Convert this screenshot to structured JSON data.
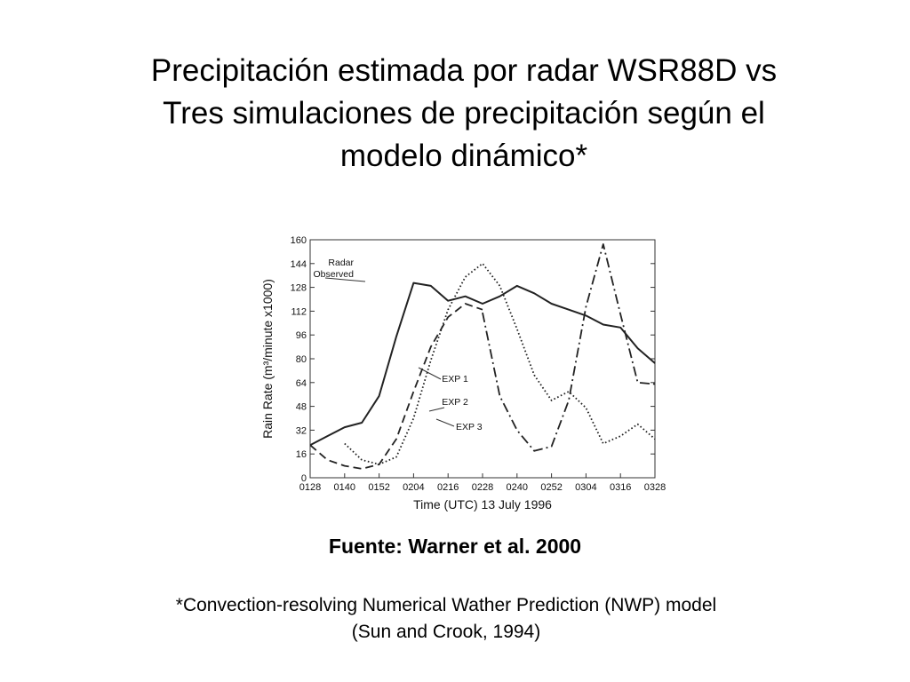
{
  "slide": {
    "title_lines": [
      "Precipitación estimada por radar WSR88D vs",
      "Tres simulaciones de precipitación según el",
      "modelo dinámico*"
    ],
    "source": "Fuente: Warner et al. 2000",
    "footnote_lines": [
      "*Convection-resolving Numerical Wather Prediction (NWP) model",
      "(Sun and Crook, 1994)"
    ]
  },
  "chart_data": {
    "type": "line",
    "xlabel": "Time (UTC) 13 July 1996",
    "ylabel": "Rain Rate (m³/minute x1000)",
    "ylim": [
      0,
      160
    ],
    "yticks": [
      0,
      16,
      32,
      48,
      64,
      80,
      96,
      112,
      128,
      144,
      160
    ],
    "x_tick_labels": [
      "0128",
      "0140",
      "0152",
      "0204",
      "0216",
      "0228",
      "0240",
      "0252",
      "0304",
      "0316",
      "0328"
    ],
    "xlim": [
      "0128",
      "0328"
    ],
    "grid": false,
    "colors": {
      "line": "#222222",
      "frame": "#333333",
      "text": "#111111"
    },
    "series": [
      {
        "name": "Radar Observed",
        "style": "solid",
        "times": [
          "0128",
          "0134",
          "0140",
          "0146",
          "0152",
          "0158",
          "0204",
          "0210",
          "0216",
          "0222",
          "0228",
          "0234",
          "0240",
          "0246",
          "0252",
          "0258",
          "0304",
          "0310",
          "0316",
          "0322",
          "0328"
        ],
        "values": [
          22,
          28,
          34,
          37,
          55,
          95,
          131,
          129,
          119,
          122,
          117,
          122,
          129,
          124,
          117,
          113,
          109,
          103,
          101,
          87,
          77
        ]
      },
      {
        "name": "EXP 1",
        "style": "dashed",
        "times": [
          "0128",
          "0134",
          "0140",
          "0146",
          "0152",
          "0158",
          "0204",
          "0210",
          "0216",
          "0222",
          "0228"
        ],
        "values": [
          22,
          12,
          8,
          6,
          9,
          26,
          58,
          88,
          108,
          117,
          113
        ]
      },
      {
        "name": "EXP 2",
        "style": "dotted",
        "times": [
          "0140",
          "0146",
          "0152",
          "0158",
          "0204",
          "0210",
          "0216",
          "0222",
          "0228",
          "0234",
          "0240",
          "0246",
          "0252",
          "0258",
          "0304",
          "0310",
          "0316",
          "0322",
          "0328"
        ],
        "values": [
          23,
          12,
          9,
          14,
          40,
          79,
          113,
          135,
          144,
          129,
          100,
          69,
          52,
          58,
          47,
          23,
          28,
          36,
          26
        ]
      },
      {
        "name": "EXP 3",
        "style": "dashdot",
        "times": [
          "0228",
          "0234",
          "0240",
          "0246",
          "0252",
          "0258",
          "0304",
          "0310",
          "0316",
          "0322",
          "0328"
        ],
        "values": [
          111,
          55,
          32,
          18,
          21,
          52,
          115,
          157,
          110,
          64,
          63
        ]
      }
    ],
    "annotations": [
      {
        "text": "Radar",
        "series": "Radar Observed"
      },
      {
        "text": "Observed",
        "series": "Radar Observed"
      },
      {
        "text": "EXP 1",
        "series": "EXP 1"
      },
      {
        "text": "EXP 2",
        "series": "EXP 2"
      },
      {
        "text": "EXP 3",
        "series": "EXP 3"
      }
    ]
  }
}
